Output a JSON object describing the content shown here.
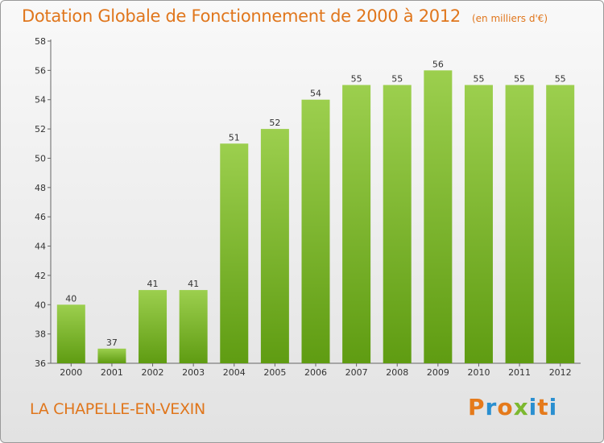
{
  "header": {
    "title": "Dotation Globale de Fonctionnement de 2000 à 2012",
    "unit": "(en milliers d'€)"
  },
  "footer": {
    "commune": "LA CHAPELLE-EN-VEXIN",
    "logo_text": "Proxiti"
  },
  "colors": {
    "title": "#e0761c",
    "bar_top": "#9ccf4e",
    "bar_bottom": "#5f9c12",
    "logo": [
      "#e57a1b",
      "#2a8fd0",
      "#e57a1b",
      "#7cb82f",
      "#2a8fd0",
      "#e57a1b",
      "#2a8fd0"
    ]
  },
  "chart_data": {
    "type": "bar",
    "title": "Dotation Globale de Fonctionnement de 2000 à 2012",
    "categories": [
      "2000",
      "2001",
      "2002",
      "2003",
      "2004",
      "2005",
      "2006",
      "2007",
      "2008",
      "2009",
      "2010",
      "2011",
      "2012"
    ],
    "values": [
      40,
      37,
      41,
      41,
      51,
      52,
      54,
      55,
      55,
      56,
      55,
      55,
      55
    ],
    "ylim": [
      36,
      58
    ],
    "yticks": [
      36,
      38,
      40,
      42,
      44,
      46,
      48,
      50,
      52,
      54,
      56,
      58
    ],
    "xlabel": "",
    "ylabel": "",
    "grid": false
  }
}
